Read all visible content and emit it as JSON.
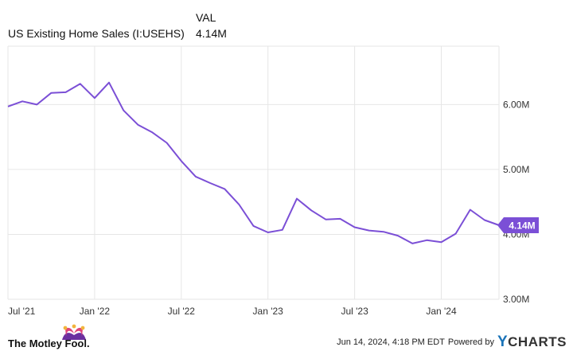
{
  "header": {
    "value_col": "VAL",
    "series_name": "US Existing Home Sales (I:USEHS)",
    "series_value": "4.14M"
  },
  "footer": {
    "brand": "The Motley Fool.",
    "timestamp": "Jun 14, 2024, 4:18 PM EDT",
    "powered_by": "Powered by",
    "provider": "CHARTS",
    "provider_initial": "Y"
  },
  "colors": {
    "line": "#7b4fd6",
    "grid": "#e6e6e6",
    "jester_pink": "#e0457b",
    "jester_purple": "#6b2fa0",
    "ycharts_blue": "#1a73b8"
  },
  "chart_data": {
    "type": "line",
    "x_tick_labels": [
      "Jul '21",
      "Jan '22",
      "Jul '22",
      "Jan '23",
      "Jul '23",
      "Jan '24"
    ],
    "x_tick_months": [
      0,
      6,
      12,
      18,
      24,
      30
    ],
    "y_tick_labels": [
      "3.00M",
      "4.00M",
      "5.00M",
      "6.00M"
    ],
    "y_ticks": [
      3.0,
      4.0,
      5.0,
      6.0
    ],
    "ylim": [
      3.0,
      6.9
    ],
    "last_value_label": "4.14M",
    "grid": true,
    "series": [
      {
        "name": "US Existing Home Sales (I:USEHS)",
        "x_months": [
          0,
          1,
          2,
          3,
          4,
          5,
          6,
          7,
          8,
          9,
          10,
          11,
          12,
          13,
          14,
          15,
          16,
          17,
          18,
          19,
          20,
          21,
          22,
          23,
          24,
          25,
          26,
          27,
          28,
          29,
          30,
          31,
          32,
          33,
          34,
          35
        ],
        "values": [
          5.97,
          6.05,
          6.0,
          6.18,
          6.19,
          6.32,
          6.1,
          6.34,
          5.91,
          5.69,
          5.57,
          5.41,
          5.13,
          4.89,
          4.79,
          4.7,
          4.46,
          4.13,
          4.03,
          4.07,
          4.55,
          4.37,
          4.23,
          4.24,
          4.11,
          4.06,
          4.04,
          3.98,
          3.86,
          3.91,
          3.88,
          4.01,
          4.38,
          4.22,
          4.14,
          4.14
        ]
      }
    ]
  }
}
